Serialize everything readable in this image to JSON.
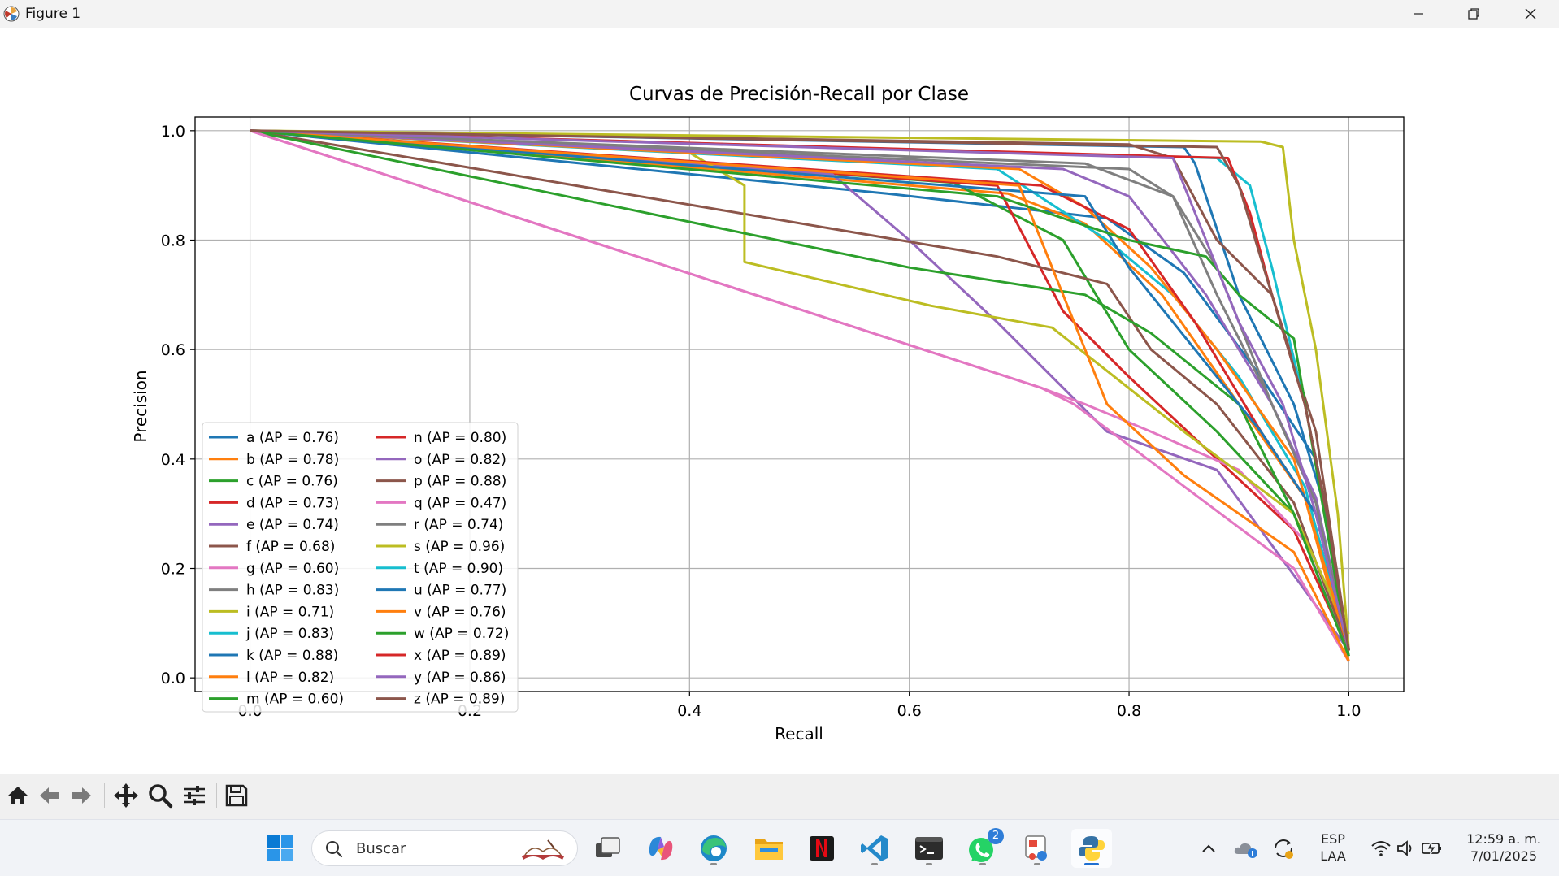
{
  "window": {
    "title": "Figure 1"
  },
  "figure": {
    "chart_data": {
      "type": "line",
      "title": "Curvas de Precisión-Recall por Clase",
      "xlabel": "Recall",
      "ylabel": "Precision",
      "xlim": [
        -0.05,
        1.05
      ],
      "ylim": [
        -0.025,
        1.025
      ],
      "xticks": [
        "0.0",
        "0.2",
        "0.4",
        "0.6",
        "0.8",
        "1.0"
      ],
      "yticks": [
        "0.0",
        "0.2",
        "0.4",
        "0.6",
        "0.8",
        "1.0"
      ],
      "grid": true,
      "legend_position": "lower-left",
      "series": [
        {
          "name": "a (AP = 0.76)",
          "color": "#1f77b4",
          "x": [
            0,
            0.58,
            0.78,
            0.85,
            0.92,
            0.97,
            1.0
          ],
          "y": [
            1,
            0.885,
            0.84,
            0.74,
            0.55,
            0.4,
            0.05
          ]
        },
        {
          "name": "b (AP = 0.78)",
          "color": "#ff7f0e",
          "x": [
            0,
            0.69,
            0.76,
            0.83,
            0.9,
            0.96,
            1.0
          ],
          "y": [
            1,
            0.885,
            0.83,
            0.7,
            0.5,
            0.33,
            0.03
          ]
        },
        {
          "name": "c (AP = 0.76)",
          "color": "#2ca02c",
          "x": [
            0,
            0.64,
            0.74,
            0.8,
            0.88,
            0.95,
            1.0
          ],
          "y": [
            1,
            0.905,
            0.8,
            0.6,
            0.45,
            0.3,
            0.04
          ]
        },
        {
          "name": "d (AP = 0.73)",
          "color": "#d62728",
          "x": [
            0,
            0.68,
            0.74,
            0.8,
            0.88,
            0.95,
            1.0
          ],
          "y": [
            1,
            0.9,
            0.67,
            0.55,
            0.4,
            0.27,
            0.05
          ]
        },
        {
          "name": "e (AP = 0.74)",
          "color": "#9467bd",
          "x": [
            0,
            0.53,
            0.6,
            0.68,
            0.78,
            0.88,
            1.0
          ],
          "y": [
            1,
            0.92,
            0.8,
            0.65,
            0.45,
            0.38,
            0.05
          ]
        },
        {
          "name": "f (AP = 0.68)",
          "color": "#8c564b",
          "x": [
            0,
            0.68,
            0.78,
            0.82,
            0.88,
            0.95,
            1.0
          ],
          "y": [
            1,
            0.77,
            0.72,
            0.6,
            0.5,
            0.32,
            0.05
          ]
        },
        {
          "name": "g (AP = 0.60)",
          "color": "#e377c2",
          "x": [
            0,
            0.72,
            0.76,
            0.82,
            0.9,
            0.96,
            1.0
          ],
          "y": [
            1,
            0.53,
            0.5,
            0.45,
            0.38,
            0.25,
            0.04
          ]
        },
        {
          "name": "h (AP = 0.83)",
          "color": "#7f7f7f",
          "x": [
            0,
            0.8,
            0.84,
            0.88,
            0.93,
            0.97,
            1.0
          ],
          "y": [
            1,
            0.93,
            0.88,
            0.7,
            0.5,
            0.32,
            0.05
          ]
        },
        {
          "name": "i (AP = 0.71)",
          "color": "#bcbd22",
          "x": [
            0,
            0.4,
            0.45,
            0.45,
            0.62,
            0.73,
            0.85,
            0.95,
            1.0
          ],
          "y": [
            1,
            0.96,
            0.9,
            0.76,
            0.68,
            0.64,
            0.45,
            0.3,
            0.08
          ]
        },
        {
          "name": "j (AP = 0.83)",
          "color": "#17becf",
          "x": [
            0,
            0.68,
            0.78,
            0.84,
            0.9,
            0.96,
            1.0
          ],
          "y": [
            1,
            0.93,
            0.8,
            0.7,
            0.55,
            0.35,
            0.05
          ]
        },
        {
          "name": "k (AP = 0.88)",
          "color": "#1f77b4",
          "x": [
            0,
            0.85,
            0.86,
            0.9,
            0.95,
            0.98,
            1.0
          ],
          "y": [
            1,
            0.97,
            0.94,
            0.7,
            0.5,
            0.3,
            0.05
          ]
        },
        {
          "name": "l (AP = 0.82)",
          "color": "#ff7f0e",
          "x": [
            0,
            0.7,
            0.76,
            0.82,
            0.88,
            0.95,
            1.0
          ],
          "y": [
            1,
            0.93,
            0.86,
            0.75,
            0.6,
            0.4,
            0.05
          ]
        },
        {
          "name": "m (AP = 0.60)",
          "color": "#2ca02c",
          "x": [
            0,
            0.6,
            0.76,
            0.82,
            0.9,
            0.95,
            1.0
          ],
          "y": [
            1,
            0.75,
            0.7,
            0.63,
            0.5,
            0.3,
            0.04
          ]
        },
        {
          "name": "n (AP = 0.80)",
          "color": "#d62728",
          "x": [
            0,
            0.72,
            0.8,
            0.86,
            0.92,
            0.97,
            1.0
          ],
          "y": [
            1,
            0.9,
            0.82,
            0.65,
            0.45,
            0.3,
            0.05
          ]
        },
        {
          "name": "o (AP = 0.82)",
          "color": "#9467bd",
          "x": [
            0,
            0.74,
            0.8,
            0.87,
            0.93,
            0.97,
            1.0
          ],
          "y": [
            1,
            0.93,
            0.88,
            0.7,
            0.5,
            0.33,
            0.05
          ]
        },
        {
          "name": "p (AP = 0.88)",
          "color": "#8c564b",
          "x": [
            0,
            0.8,
            0.84,
            0.88,
            0.93,
            0.97,
            1.0
          ],
          "y": [
            1,
            0.975,
            0.95,
            0.8,
            0.7,
            0.45,
            0.05
          ]
        },
        {
          "name": "q (AP = 0.47)",
          "color": "#e377c2",
          "x": [
            0,
            0.72,
            0.75,
            0.95,
            1.0
          ],
          "y": [
            1,
            0.53,
            0.5,
            0.2,
            0.03
          ]
        },
        {
          "name": "r (AP = 0.74)",
          "color": "#7f7f7f",
          "x": [
            0,
            0.76,
            0.84,
            0.88,
            0.93,
            0.97,
            1.0
          ],
          "y": [
            1,
            0.94,
            0.88,
            0.75,
            0.5,
            0.32,
            0.05
          ]
        },
        {
          "name": "s (AP = 0.96)",
          "color": "#bcbd22",
          "x": [
            0,
            0.92,
            0.94,
            0.95,
            0.97,
            0.99,
            1.0
          ],
          "y": [
            1,
            0.98,
            0.97,
            0.8,
            0.6,
            0.3,
            0.05
          ]
        },
        {
          "name": "t (AP = 0.90)",
          "color": "#17becf",
          "x": [
            0,
            0.88,
            0.91,
            0.93,
            0.96,
            0.98,
            1.0
          ],
          "y": [
            1,
            0.95,
            0.9,
            0.75,
            0.5,
            0.3,
            0.05
          ]
        },
        {
          "name": "u (AP = 0.77)",
          "color": "#1f77b4",
          "x": [
            0,
            0.76,
            0.8,
            0.86,
            0.92,
            0.97,
            1.0
          ],
          "y": [
            1,
            0.88,
            0.75,
            0.6,
            0.45,
            0.3,
            0.05
          ]
        },
        {
          "name": "v (AP = 0.76)",
          "color": "#ff7f0e",
          "x": [
            0,
            0.7,
            0.73,
            0.78,
            0.85,
            0.95,
            1.0
          ],
          "y": [
            1,
            0.9,
            0.75,
            0.5,
            0.37,
            0.23,
            0.03
          ]
        },
        {
          "name": "w (AP = 0.72)",
          "color": "#2ca02c",
          "x": [
            0,
            0.68,
            0.8,
            0.87,
            0.9,
            0.95,
            1.0
          ],
          "y": [
            1,
            0.88,
            0.8,
            0.77,
            0.7,
            0.62,
            0.04
          ]
        },
        {
          "name": "x (AP = 0.89)",
          "color": "#d62728",
          "x": [
            0,
            0.89,
            0.91,
            0.93,
            0.96,
            0.98,
            1.0
          ],
          "y": [
            1,
            0.95,
            0.85,
            0.7,
            0.5,
            0.3,
            0.05
          ]
        },
        {
          "name": "y (AP = 0.86)",
          "color": "#9467bd",
          "x": [
            0,
            0.84,
            0.87,
            0.9,
            0.94,
            0.97,
            1.0
          ],
          "y": [
            1,
            0.95,
            0.8,
            0.65,
            0.5,
            0.3,
            0.05
          ]
        },
        {
          "name": "z (AP = 0.89)",
          "color": "#8c564b",
          "x": [
            0,
            0.88,
            0.9,
            0.93,
            0.96,
            0.98,
            1.0
          ],
          "y": [
            1,
            0.97,
            0.9,
            0.7,
            0.5,
            0.3,
            0.05
          ]
        }
      ]
    }
  },
  "toolbar": {
    "icons": [
      "home-icon",
      "back-icon",
      "forward-icon",
      "pan-icon",
      "zoom-icon",
      "configure-subplots-icon",
      "save-icon"
    ]
  },
  "taskbar": {
    "search_placeholder": "Buscar",
    "whatsapp_badge": "2",
    "language": "ESP",
    "layout": "LAA",
    "time": "12:59 a. m.",
    "date": "7/01/2025"
  }
}
